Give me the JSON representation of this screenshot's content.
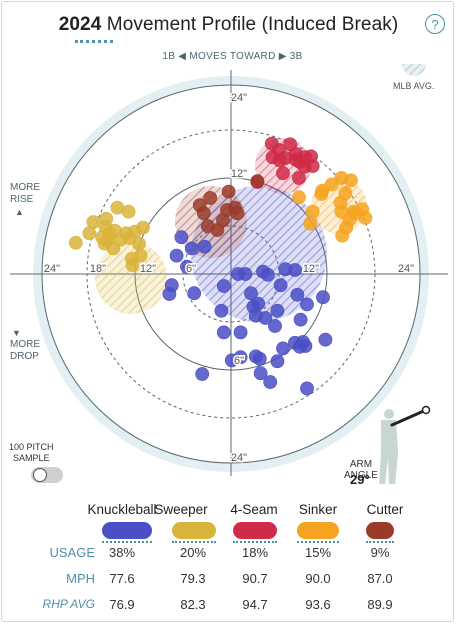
{
  "header": {
    "year": "2024",
    "title": "Movement Profile (Induced Break)",
    "help_label": "?"
  },
  "direction": {
    "left_label": "1B ◀",
    "middle_label": "MOVES TOWARD",
    "right_label": "▶ 3B"
  },
  "legend": {
    "mlb_avg": "MLB AVG."
  },
  "side": {
    "more_rise": [
      "MORE",
      "RISE"
    ],
    "more_drop": [
      "MORE",
      "DROP"
    ],
    "up_arrow": "▲",
    "down_arrow": "▼"
  },
  "sample": {
    "line1": "100 PITCH",
    "line2": "SAMPLE"
  },
  "arm_angle": {
    "line1": "ARM",
    "line2": "ANGLE",
    "value": "29°"
  },
  "colors": {
    "Knuckleball": "#4a4fc6",
    "Sweeper": "#d9b43a",
    "4-Seam": "#cf2a47",
    "Sinker": "#f4a420",
    "Cutter": "#9a3b2a",
    "accent": "#4f8fa8",
    "field": "#e3eff3"
  },
  "table": {
    "row_labels": {
      "usage": "USAGE",
      "mph": "MPH",
      "rhp": "RHP AVG"
    },
    "pitches": [
      {
        "name": "Knuckleball",
        "usage": "38%",
        "mph": "77.6",
        "rhp": "76.9"
      },
      {
        "name": "Sweeper",
        "usage": "20%",
        "mph": "79.3",
        "rhp": "82.3"
      },
      {
        "name": "4-Seam",
        "usage": "18%",
        "mph": "90.7",
        "rhp": "94.7"
      },
      {
        "name": "Sinker",
        "usage": "15%",
        "mph": "90.0",
        "rhp": "93.6"
      },
      {
        "name": "Cutter",
        "usage": "9%",
        "mph": "87.0",
        "rhp": "89.9"
      }
    ]
  },
  "chart_data": {
    "type": "scatter",
    "title": "2024 Movement Profile (Induced Break)",
    "xlabel": "",
    "ylabel": "",
    "xlim": [
      -24,
      24
    ],
    "ylim": [
      -24,
      24
    ],
    "ring_labels": [
      "6\"",
      "12\"",
      "18\"",
      "24\""
    ],
    "axis_labels": {
      "top_24": "24\"",
      "top_12": "12\"",
      "left_24": "24\"",
      "left_18": "18\"",
      "left_12": "12\"",
      "left_6": "6\"",
      "right_12": "12\"",
      "right_24": "24\"",
      "bottom_24": "24\"",
      "bottom_6": "6\""
    },
    "mlb_averages": [
      {
        "pitch": "Knuckleball",
        "x": 3.5,
        "y": 2.5,
        "r": 8.5
      },
      {
        "pitch": "Sweeper",
        "x": -12.5,
        "y": -0.5,
        "r": 4.5
      },
      {
        "pitch": "4-Seam",
        "x": 6.5,
        "y": 13.5,
        "r": 3.5
      },
      {
        "pitch": "Sinker",
        "x": 13.5,
        "y": 8.5,
        "r": 3.5
      },
      {
        "pitch": "Cutter",
        "x": -2.5,
        "y": 6.5,
        "r": 4.5
      }
    ],
    "series": [
      {
        "name": "Knuckleball",
        "points": [
          [
            -6.2,
            4.6
          ],
          [
            -3.3,
            3.4
          ],
          [
            -4.9,
            3.2
          ],
          [
            -6.8,
            2.3
          ],
          [
            -5.5,
            0.9
          ],
          [
            0.9,
            0.0
          ],
          [
            1.8,
            0.0
          ],
          [
            4.0,
            0.3
          ],
          [
            4.6,
            -0.1
          ],
          [
            6.8,
            0.6
          ],
          [
            8.0,
            0.5
          ],
          [
            -7.4,
            -1.4
          ],
          [
            -0.9,
            -1.5
          ],
          [
            2.5,
            -2.4
          ],
          [
            6.2,
            -1.4
          ],
          [
            8.3,
            -2.6
          ],
          [
            -4.6,
            -2.4
          ],
          [
            -7.7,
            -2.5
          ],
          [
            2.8,
            -4.1
          ],
          [
            3.4,
            -3.7
          ],
          [
            5.8,
            -4.6
          ],
          [
            9.5,
            -3.8
          ],
          [
            11.5,
            -2.9
          ],
          [
            -1.2,
            -4.6
          ],
          [
            3.1,
            -5.2
          ],
          [
            4.3,
            -5.5
          ],
          [
            8.7,
            -5.7
          ],
          [
            5.5,
            -6.5
          ],
          [
            1.2,
            -7.3
          ],
          [
            -0.9,
            -7.3
          ],
          [
            11.8,
            -8.2
          ],
          [
            8.0,
            -8.6
          ],
          [
            8.6,
            -9.1
          ],
          [
            9.3,
            -9.0
          ],
          [
            9.0,
            -8.5
          ],
          [
            6.5,
            -9.3
          ],
          [
            1.2,
            -10.4
          ],
          [
            3.1,
            -10.3
          ],
          [
            3.6,
            -10.6
          ],
          [
            0.1,
            -10.8
          ],
          [
            5.8,
            -10.9
          ],
          [
            -3.6,
            -12.5
          ],
          [
            3.7,
            -12.4
          ],
          [
            4.9,
            -13.5
          ],
          [
            9.5,
            -14.3
          ]
        ]
      },
      {
        "name": "Sweeper",
        "points": [
          [
            -14.2,
            8.3
          ],
          [
            -12.8,
            7.8
          ],
          [
            -15.6,
            6.9
          ],
          [
            -17.2,
            6.5
          ],
          [
            -15.7,
            5.9
          ],
          [
            -14.5,
            5.4
          ],
          [
            -11.0,
            5.8
          ],
          [
            -12.0,
            5.3
          ],
          [
            -17.7,
            5.1
          ],
          [
            -13.1,
            5.1
          ],
          [
            -15.2,
            5.0
          ],
          [
            -16.1,
            4.6
          ],
          [
            -15.4,
            4.2
          ],
          [
            -13.8,
            4.3
          ],
          [
            -12.7,
            4.5
          ],
          [
            -19.4,
            3.9
          ],
          [
            -15.8,
            3.8
          ],
          [
            -11.5,
            3.8
          ],
          [
            -14.7,
            3.2
          ],
          [
            -11.3,
            2.3
          ],
          [
            -12.4,
            1.9
          ],
          [
            -12.3,
            1.1
          ]
        ]
      },
      {
        "name": "4-Seam",
        "points": [
          [
            5.1,
            16.3
          ],
          [
            7.4,
            16.2
          ],
          [
            6.0,
            15.5
          ],
          [
            8.1,
            15.0
          ],
          [
            9.2,
            14.6
          ],
          [
            5.2,
            14.6
          ],
          [
            10.0,
            14.7
          ],
          [
            6.8,
            14.5
          ],
          [
            6.1,
            14.2
          ],
          [
            8.1,
            14.3
          ],
          [
            8.6,
            14.0
          ],
          [
            10.2,
            13.5
          ],
          [
            9.2,
            13.4
          ],
          [
            6.5,
            12.6
          ],
          [
            8.5,
            12.0
          ],
          [
            3.3,
            11.5
          ]
        ]
      },
      {
        "name": "Sinker",
        "points": [
          [
            13.8,
            12.0
          ],
          [
            15.0,
            11.7
          ],
          [
            12.6,
            11.2
          ],
          [
            11.4,
            10.4
          ],
          [
            14.3,
            10.1
          ],
          [
            11.3,
            10.0
          ],
          [
            8.5,
            9.6
          ],
          [
            13.7,
            8.9
          ],
          [
            16.4,
            8.1
          ],
          [
            15.3,
            7.8
          ],
          [
            13.8,
            7.8
          ],
          [
            10.2,
            7.8
          ],
          [
            15.6,
            7.6
          ],
          [
            16.8,
            7.0
          ],
          [
            14.8,
            6.8
          ],
          [
            9.9,
            6.3
          ],
          [
            14.4,
            5.8
          ],
          [
            13.9,
            4.8
          ]
        ]
      },
      {
        "name": "Cutter",
        "points": [
          [
            3.3,
            11.6
          ],
          [
            -0.3,
            10.3
          ],
          [
            -2.6,
            9.5
          ],
          [
            -3.9,
            8.6
          ],
          [
            -3.4,
            7.6
          ],
          [
            -0.5,
            8.0
          ],
          [
            0.5,
            8.3
          ],
          [
            0.8,
            7.6
          ],
          [
            -1.0,
            6.7
          ],
          [
            -1.7,
            5.5
          ],
          [
            -2.9,
            6.0
          ]
        ]
      }
    ]
  }
}
